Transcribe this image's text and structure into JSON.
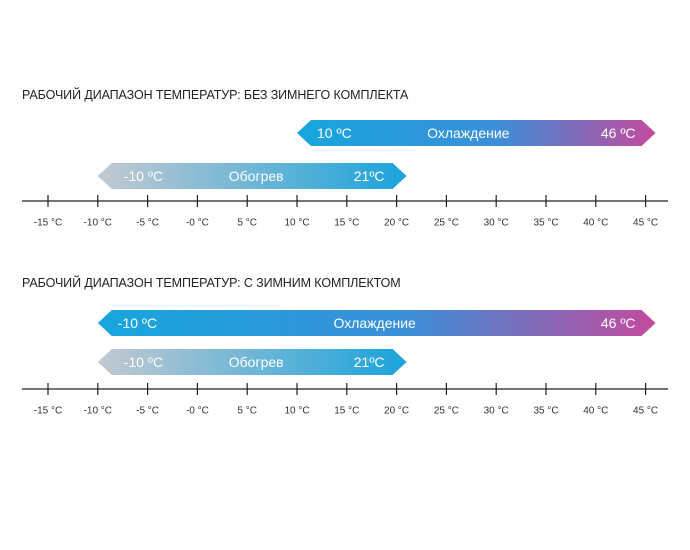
{
  "sections": [
    {
      "title": "РАБОЧИЙ ДИАПАЗОН ТЕМПЕРАТУР: БЕЗ ЗИМНЕГО КОМПЛЕКТА",
      "cooling": {
        "name": "Охлаждение",
        "from": 10,
        "to": 46,
        "from_label": "10 ºC",
        "to_label": "46 ºC"
      },
      "heating": {
        "name": "Обогрев",
        "from": -10,
        "to": 21,
        "from_label": "-10 ºC",
        "to_label": "21ºC"
      }
    },
    {
      "title": "РАБОЧИЙ ДИАПАЗОН ТЕМПЕРАТУР: С ЗИМНИМ КОМПЛЕКТОМ",
      "cooling": {
        "name": "Охлаждение",
        "from": -10,
        "to": 46,
        "from_label": "-10 ºC",
        "to_label": "46 ºC"
      },
      "heating": {
        "name": "Обогрев",
        "from": -10,
        "to": 21,
        "from_label": "-10 ºC",
        "to_label": "21ºC"
      }
    }
  ],
  "axis": {
    "ticks": [
      -15,
      -10,
      -5,
      0,
      5,
      10,
      15,
      20,
      25,
      30,
      35,
      40,
      45
    ],
    "tick_labels": [
      "-15 °C",
      "-10 °C",
      "-5 °C",
      "-0 °C",
      "5 °C",
      "10 °C",
      "15 °C",
      "20 °C",
      "25 °C",
      "30 °C",
      "35 °C",
      "40 °C",
      "45 °C"
    ]
  },
  "colors": {
    "cooling_start": "#16a6df",
    "cooling_mid": "#3a8fd8",
    "cooling_end": "#c44a9e",
    "heating_start": "#c3c9d1",
    "heating_end": "#1aa3dc",
    "axis": "#222222"
  }
}
